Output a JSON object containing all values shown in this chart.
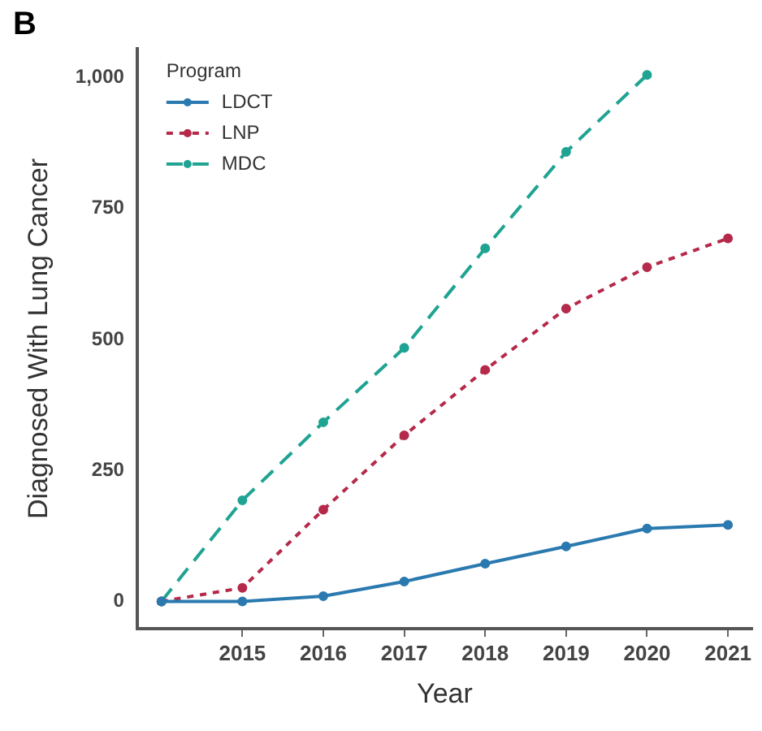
{
  "chart_data": {
    "type": "line",
    "title": "B",
    "xlabel": "Year",
    "ylabel": "Diagnosed With Lung Cancer",
    "legend_title": "Program",
    "x": [
      2014,
      2015,
      2016,
      2017,
      2018,
      2019,
      2020,
      2021
    ],
    "series": [
      {
        "name": "LDCT",
        "color": "#2a7ab0",
        "line_style": "solid",
        "values": [
          0,
          0,
          10,
          38,
          72,
          105,
          139,
          146
        ]
      },
      {
        "name": "LNP",
        "color": "#b5294a",
        "line_style": "dotted",
        "values": [
          0,
          26,
          175,
          317,
          442,
          559,
          638,
          693
        ]
      },
      {
        "name": "MDC",
        "color": "#1fa392",
        "line_style": "dashed",
        "values": [
          0,
          193,
          342,
          484,
          674,
          858,
          1005,
          null
        ]
      }
    ],
    "xlim": [
      2013.7,
      2021.3
    ],
    "xticks": [
      2015,
      2016,
      2017,
      2018,
      2019,
      2020,
      2021
    ],
    "ylim": [
      -52,
      1055
    ],
    "yticks": [
      0,
      250,
      500,
      750,
      {
        "value": 1000,
        "label": "1,000"
      }
    ],
    "grid": false,
    "legend": "top left",
    "marker": "circle"
  }
}
